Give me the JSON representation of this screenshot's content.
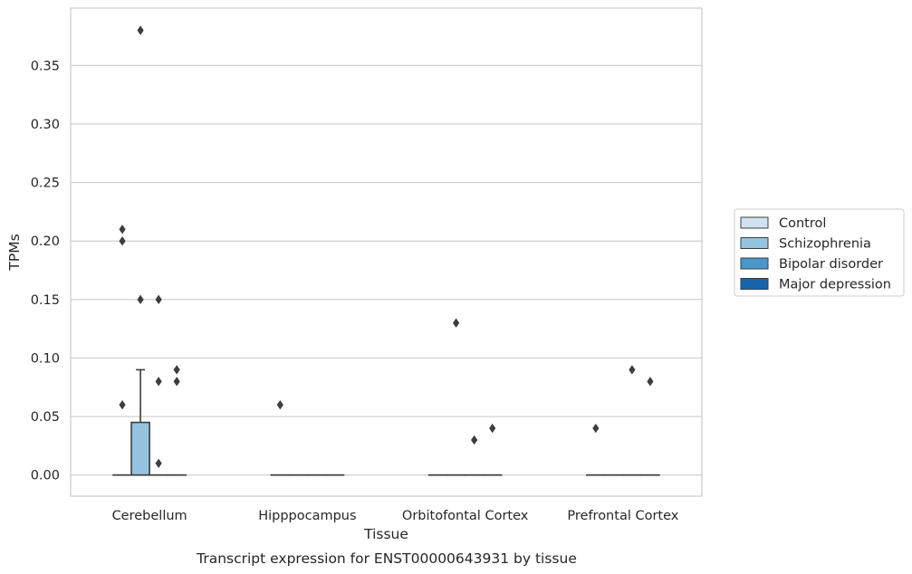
{
  "caption": "Transcript expression for ENST00000643931 by tissue",
  "chart_data": {
    "type": "box",
    "title": "",
    "xlabel": "Tissue",
    "ylabel": "TPMs",
    "ylim": [
      -0.018,
      0.399
    ],
    "yticks": [
      "0.00",
      "0.05",
      "0.10",
      "0.15",
      "0.20",
      "0.25",
      "0.30",
      "0.35"
    ],
    "grid": true,
    "legend_position": "right",
    "categories": [
      "Cerebellum",
      "Hipppocampus",
      "Orbitofontal Cortex",
      "Prefrontal Cortex"
    ],
    "series": [
      {
        "name": "Control",
        "color": "#d0e1f2",
        "boxes": [
          {
            "q1": 0,
            "median": 0,
            "q3": 0,
            "whisker_low": 0,
            "whisker_high": 0,
            "outliers": [
              0.06,
              0.2,
              0.21
            ]
          },
          {
            "q1": 0,
            "median": 0,
            "q3": 0,
            "whisker_low": 0,
            "whisker_high": 0,
            "outliers": [
              0.06
            ]
          },
          {
            "q1": 0,
            "median": 0,
            "q3": 0,
            "whisker_low": 0,
            "whisker_high": 0,
            "outliers": []
          },
          {
            "q1": 0,
            "median": 0,
            "q3": 0,
            "whisker_low": 0,
            "whisker_high": 0,
            "outliers": [
              0.04
            ]
          }
        ]
      },
      {
        "name": "Schizophrenia",
        "color": "#94c4df",
        "boxes": [
          {
            "q1": 0,
            "median": 0,
            "q3": 0.045,
            "whisker_low": 0,
            "whisker_high": 0.09,
            "outliers": [
              0.15,
              0.38
            ]
          },
          {
            "q1": 0,
            "median": 0,
            "q3": 0,
            "whisker_low": 0,
            "whisker_high": 0,
            "outliers": []
          },
          {
            "q1": 0,
            "median": 0,
            "q3": 0,
            "whisker_low": 0,
            "whisker_high": 0,
            "outliers": [
              0.13
            ]
          },
          {
            "q1": 0,
            "median": 0,
            "q3": 0,
            "whisker_low": 0,
            "whisker_high": 0,
            "outliers": []
          }
        ]
      },
      {
        "name": "Bipolar disorder",
        "color": "#4a98c9",
        "boxes": [
          {
            "q1": 0,
            "median": 0,
            "q3": 0,
            "whisker_low": 0,
            "whisker_high": 0,
            "outliers": [
              0.01,
              0.08,
              0.15
            ]
          },
          {
            "q1": 0,
            "median": 0,
            "q3": 0,
            "whisker_low": 0,
            "whisker_high": 0,
            "outliers": []
          },
          {
            "q1": 0,
            "median": 0,
            "q3": 0,
            "whisker_low": 0,
            "whisker_high": 0,
            "outliers": [
              0.03
            ]
          },
          {
            "q1": 0,
            "median": 0,
            "q3": 0,
            "whisker_low": 0,
            "whisker_high": 0,
            "outliers": [
              0.09
            ]
          }
        ]
      },
      {
        "name": "Major depression",
        "color": "#1764ab",
        "boxes": [
          {
            "q1": 0,
            "median": 0,
            "q3": 0,
            "whisker_low": 0,
            "whisker_high": 0,
            "outliers": [
              0.08,
              0.09
            ]
          },
          {
            "q1": 0,
            "median": 0,
            "q3": 0,
            "whisker_low": 0,
            "whisker_high": 0,
            "outliers": []
          },
          {
            "q1": 0,
            "median": 0,
            "q3": 0,
            "whisker_low": 0,
            "whisker_high": 0,
            "outliers": [
              0.04
            ]
          },
          {
            "q1": 0,
            "median": 0,
            "q3": 0,
            "whisker_low": 0,
            "whisker_high": 0,
            "outliers": [
              0.08
            ]
          }
        ]
      }
    ]
  }
}
